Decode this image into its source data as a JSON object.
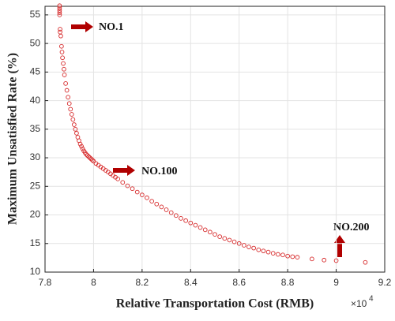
{
  "chart_data": {
    "type": "scatter",
    "xlabel": "Relative Transportation Cost (RMB)",
    "ylabel": "Maximum Unsatisfied Rate (%)",
    "x_multiplier": {
      "base": "×10",
      "power": "4"
    },
    "annotations": [
      "NO.1",
      "NO.100",
      "NO.200"
    ],
    "xlim": [
      7.8,
      9.2
    ],
    "xticks": [
      7.8,
      8,
      8.2,
      8.4,
      8.6,
      8.8,
      9,
      9.2
    ],
    "ylim": [
      10,
      56.5
    ],
    "yticks": [
      10,
      15,
      20,
      25,
      30,
      35,
      40,
      45,
      50,
      55
    ],
    "grid": true,
    "series": [
      {
        "color": "#d62728",
        "x": [
          7.86,
          7.86,
          7.86,
          7.86,
          7.86,
          7.862,
          7.862,
          7.865,
          7.868,
          7.87,
          7.872,
          7.875,
          7.878,
          7.88,
          7.885,
          7.89,
          7.895,
          7.9,
          7.905,
          7.91,
          7.915,
          7.92,
          7.925,
          7.93,
          7.935,
          7.94,
          7.945,
          7.95,
          7.955,
          7.96,
          7.965,
          7.97,
          7.975,
          7.98,
          7.985,
          7.99,
          7.995,
          8.0,
          8.01,
          8.02,
          8.03,
          8.04,
          8.05,
          8.06,
          8.07,
          8.08,
          8.09,
          8.1,
          8.12,
          8.14,
          8.16,
          8.18,
          8.2,
          8.22,
          8.24,
          8.26,
          8.28,
          8.3,
          8.32,
          8.34,
          8.36,
          8.38,
          8.4,
          8.42,
          8.44,
          8.46,
          8.48,
          8.5,
          8.52,
          8.54,
          8.56,
          8.58,
          8.6,
          8.62,
          8.64,
          8.66,
          8.68,
          8.7,
          8.72,
          8.74,
          8.76,
          8.78,
          8.8,
          8.82,
          8.84,
          8.9,
          8.95,
          9.0,
          9.12
        ],
        "values": [
          56.6,
          56.2,
          55.8,
          55.4,
          55.0,
          52.5,
          52.0,
          51.3,
          49.5,
          48.5,
          47.5,
          46.5,
          45.5,
          44.5,
          43.0,
          41.8,
          40.6,
          39.5,
          38.5,
          37.6,
          36.7,
          35.8,
          35.0,
          34.3,
          33.6,
          33.0,
          32.4,
          32.0,
          31.6,
          31.2,
          30.9,
          30.6,
          30.4,
          30.2,
          30.0,
          29.8,
          29.6,
          29.4,
          29.0,
          28.7,
          28.4,
          28.1,
          27.8,
          27.5,
          27.2,
          26.9,
          26.6,
          26.3,
          25.7,
          25.1,
          24.6,
          24.0,
          23.5,
          23.0,
          22.4,
          21.9,
          21.4,
          20.9,
          20.4,
          19.9,
          19.4,
          19.0,
          18.6,
          18.2,
          17.8,
          17.4,
          17.0,
          16.6,
          16.2,
          15.9,
          15.6,
          15.3,
          15.0,
          14.7,
          14.4,
          14.2,
          13.9,
          13.7,
          13.5,
          13.3,
          13.1,
          13.0,
          12.8,
          12.7,
          12.6,
          12.3,
          12.1,
          12.0,
          11.7
        ]
      }
    ]
  }
}
